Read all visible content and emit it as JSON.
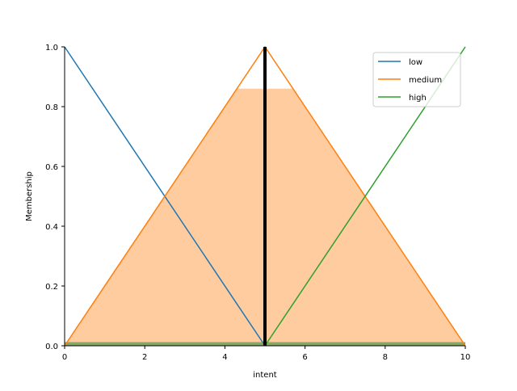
{
  "chart_data": {
    "type": "line",
    "xlabel": "intent",
    "ylabel": "Membership",
    "xlim": [
      0,
      10
    ],
    "ylim": [
      0,
      1.0
    ],
    "x_ticks": [
      "0",
      "2",
      "4",
      "6",
      "8",
      "10"
    ],
    "y_ticks": [
      "0.0",
      "0.2",
      "0.4",
      "0.6",
      "0.8",
      "1.0"
    ],
    "grid": false,
    "legend_position": "top-right",
    "series": [
      {
        "name": "low",
        "color": "#1f77b4",
        "x": [
          0,
          5
        ],
        "y": [
          1.0,
          0.0
        ]
      },
      {
        "name": "medium",
        "color": "#ff7f0e",
        "x": [
          0,
          5,
          10
        ],
        "y": [
          0.0,
          1.0,
          0.0
        ]
      },
      {
        "name": "high",
        "color": "#2ca02c",
        "x": [
          5,
          10
        ],
        "y": [
          0.0,
          1.0
        ]
      }
    ],
    "activation_fills": [
      {
        "series": "low",
        "color": "#1f77b4",
        "level": 0.0
      },
      {
        "series": "medium",
        "color": "#ff7f0e",
        "level": 0.86
      },
      {
        "series": "high",
        "color": "#2ca02c",
        "level": 0.0
      }
    ],
    "crisp_value_line": {
      "x": 5.0,
      "color": "#000000"
    }
  }
}
